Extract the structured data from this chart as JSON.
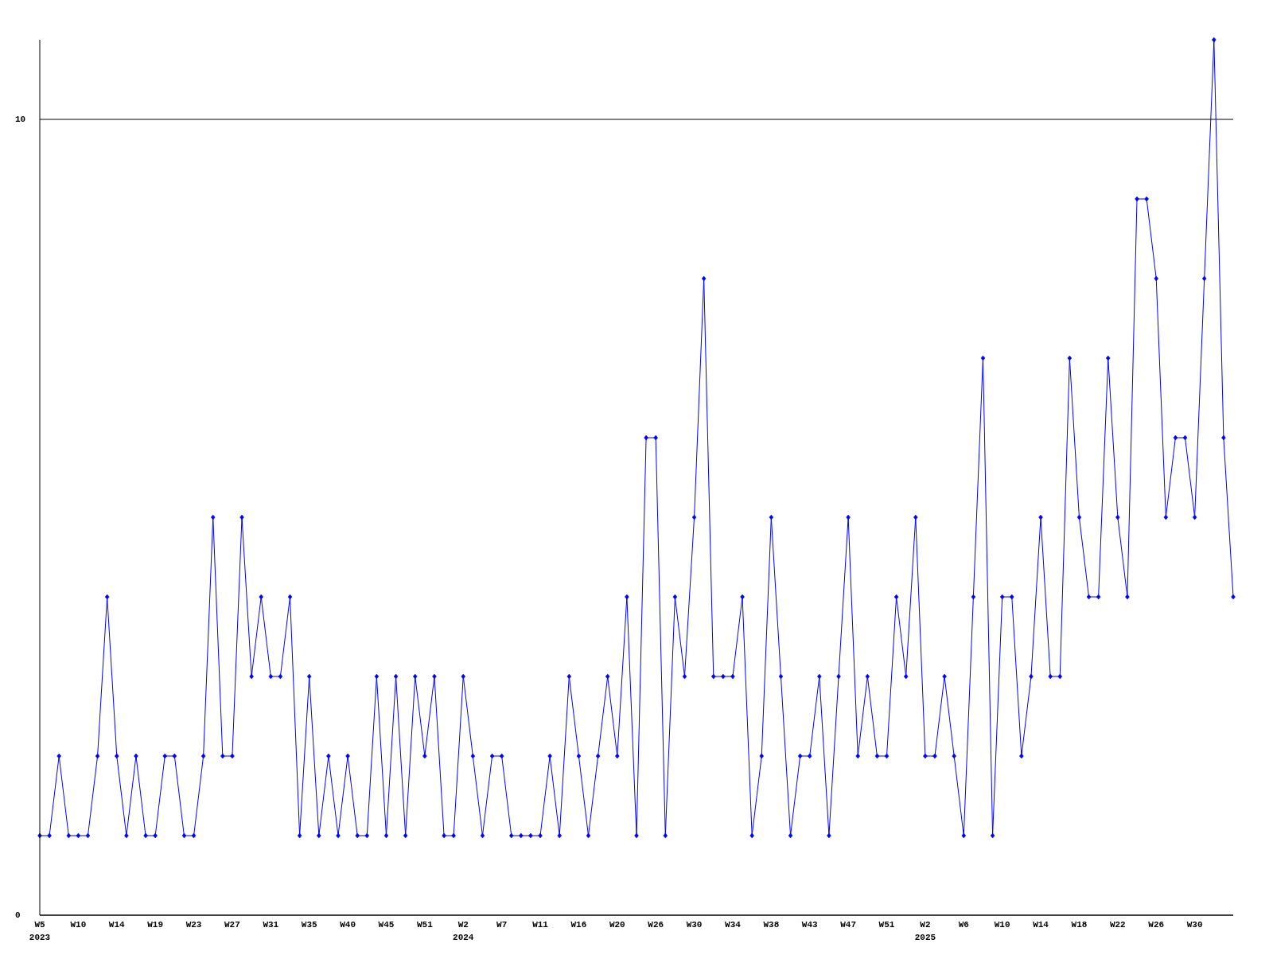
{
  "chart_data": {
    "type": "line",
    "categories": [
      "W5\n2023",
      null,
      null,
      null,
      "W10",
      null,
      null,
      null,
      "W14",
      null,
      null,
      null,
      "W19",
      null,
      null,
      null,
      "W23",
      null,
      null,
      null,
      "W27",
      null,
      null,
      null,
      "W31",
      null,
      null,
      null,
      "W35",
      null,
      null,
      null,
      "W40",
      null,
      null,
      null,
      "W45",
      null,
      null,
      null,
      "W51",
      null,
      null,
      null,
      "W2\n2024",
      null,
      null,
      null,
      "W7",
      null,
      null,
      null,
      "W11",
      null,
      null,
      null,
      "W16",
      null,
      null,
      null,
      "W20",
      null,
      null,
      null,
      "W26",
      null,
      null,
      null,
      "W30",
      null,
      null,
      null,
      "W34",
      null,
      null,
      null,
      "W38",
      null,
      null,
      null,
      "W43",
      null,
      null,
      null,
      "W47",
      null,
      null,
      null,
      "W51",
      null,
      null,
      null,
      "W2\n2025",
      null,
      null,
      null,
      "W6",
      null,
      null,
      null,
      "W10",
      null,
      null,
      null,
      "W14",
      null,
      null,
      null,
      "W18",
      null,
      null,
      null,
      "W22",
      null,
      null,
      null,
      "W26",
      null,
      null,
      null,
      "W30",
      null,
      null,
      null,
      null
    ],
    "series": [
      {
        "color": "#0000ff",
        "values": [
          1,
          1,
          2,
          1,
          1,
          1,
          2,
          4,
          2,
          1,
          2,
          1,
          1,
          2,
          2,
          1,
          1,
          2,
          5,
          2,
          2,
          5,
          3,
          4,
          3,
          3,
          4,
          1,
          3,
          1,
          2,
          1,
          2,
          1,
          1,
          3,
          1,
          3,
          1,
          3,
          2,
          3,
          1,
          1,
          3,
          2,
          1,
          2,
          2,
          1,
          1,
          1,
          1,
          2,
          1,
          3,
          2,
          1,
          2,
          3,
          2,
          4,
          1,
          6,
          6,
          1,
          4,
          3,
          5,
          8,
          3,
          3,
          3,
          4,
          1,
          2,
          5,
          3,
          1,
          2,
          2,
          3,
          1,
          3,
          5,
          2,
          3,
          2,
          2,
          4,
          3,
          5,
          2,
          2,
          3,
          2,
          1,
          4,
          7,
          1,
          4,
          4,
          2,
          3,
          5,
          3,
          3,
          7,
          5,
          4,
          4,
          7,
          5,
          4,
          9,
          9,
          8,
          5,
          6,
          6,
          5,
          8,
          11,
          6,
          4
        ]
      }
    ],
    "ylim": [
      0,
      11
    ],
    "yticks": [
      0,
      10
    ],
    "grid": "y",
    "marker": "diamond",
    "line_style": "solid"
  }
}
